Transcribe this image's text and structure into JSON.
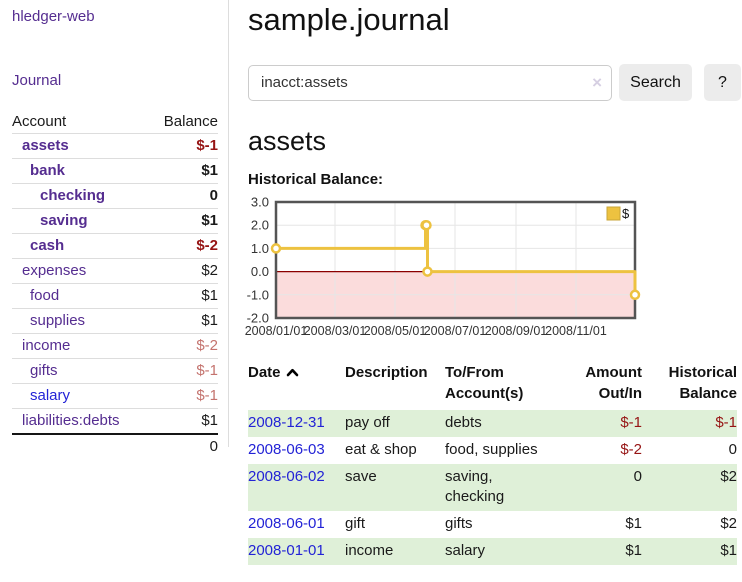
{
  "colors": {
    "link-purple": "#552d90",
    "link-blue": "#2323d6",
    "negative-strong": "#961414",
    "negative-soft": "#c4736e",
    "row-stripe": "#dff0d8",
    "chart-line": "#edc240"
  },
  "sidebar": {
    "app_title": "hledger-web",
    "journal_label": "Journal",
    "accounts_table": {
      "account_header": "Account",
      "balance_header": "Balance",
      "rows": [
        {
          "name": "assets",
          "balance": "$-1",
          "row_class": "d1 emph",
          "bal_class": "neg-strong"
        },
        {
          "name": "bank",
          "balance": "$1",
          "row_class": "d2 emph",
          "bal_class": ""
        },
        {
          "name": "checking",
          "balance": "0",
          "row_class": "d3 emph",
          "bal_class": ""
        },
        {
          "name": "saving",
          "balance": "$1",
          "row_class": "d3 emph",
          "bal_class": ""
        },
        {
          "name": "cash",
          "balance": "$-2",
          "row_class": "d2 emph",
          "bal_class": "neg-strong"
        },
        {
          "name": "expenses",
          "balance": "$2",
          "row_class": "d1",
          "bal_class": ""
        },
        {
          "name": "food",
          "balance": "$1",
          "row_class": "d2",
          "bal_class": ""
        },
        {
          "name": "supplies",
          "balance": "$1",
          "row_class": "d2",
          "bal_class": ""
        },
        {
          "name": "income",
          "balance": "$-2",
          "row_class": "d1",
          "bal_class": "neg-soft"
        },
        {
          "name": "gifts",
          "balance": "$-1",
          "row_class": "d2",
          "bal_class": "neg-soft"
        },
        {
          "name": "salary",
          "balance": "$-1",
          "row_class": "d2 unvisited",
          "bal_class": "neg-soft"
        },
        {
          "name": "liabilities:debts",
          "balance": "$1",
          "row_class": "d1",
          "bal_class": ""
        }
      ],
      "total": "0"
    }
  },
  "header": {
    "title": "sample.journal"
  },
  "search": {
    "value": "inacct:assets",
    "clear_icon": "×",
    "button_label": "Search",
    "help_label": "?"
  },
  "account_page": {
    "title": "assets",
    "chart_label": "Historical Balance:"
  },
  "chart_data": {
    "type": "line",
    "title": "Historical Balance:",
    "series": [
      {
        "name": "$",
        "color": "#edc240",
        "step": true,
        "points": [
          [
            "2008-01-01",
            1
          ],
          [
            "2008-06-01",
            2
          ],
          [
            "2008-06-02",
            2
          ],
          [
            "2008-06-03",
            0
          ],
          [
            "2008-12-31",
            -1
          ]
        ]
      }
    ],
    "x_ticks": [
      "2008/01/01",
      "2008/03/01",
      "2008/05/01",
      "2008/07/01",
      "2008/09/01",
      "2008/11/01"
    ],
    "y_ticks": [
      "3.0",
      "2.0",
      "1.0",
      "0.0",
      "-1.0",
      "-2.0"
    ],
    "ylim": [
      -2,
      3
    ],
    "xlim": [
      "2008-01-01",
      "2008-12-31"
    ],
    "grid": true,
    "legend": {
      "label": "$",
      "position": "top-right"
    },
    "negative_region_color": "#fbdcdc",
    "zero_line_color": "#8b0000",
    "border_color": "#545454"
  },
  "register": {
    "headers": {
      "date": "Date",
      "description": "Description",
      "accounts": "To/From\nAccount(s)",
      "amount": "Amount\nOut/In",
      "balance": "Historical\nBalance"
    },
    "rows": [
      {
        "date": "2008-12-31",
        "description": "pay off",
        "accounts": "debts",
        "amount": "$-1",
        "amount_class": "neg-strong",
        "balance": "$-1",
        "balance_class": "neg-strong",
        "row_class": "striped"
      },
      {
        "date": "2008-06-03",
        "description": "eat & shop",
        "accounts": "food, supplies",
        "amount": "$-2",
        "amount_class": "neg-strong",
        "balance": "0",
        "balance_class": "",
        "row_class": ""
      },
      {
        "date": "2008-06-02",
        "description": "save",
        "accounts": "saving, checking",
        "amount": "0",
        "amount_class": "",
        "balance": "$2",
        "balance_class": "",
        "row_class": "striped"
      },
      {
        "date": "2008-06-01",
        "description": "gift",
        "accounts": "gifts",
        "amount": "$1",
        "amount_class": "",
        "balance": "$2",
        "balance_class": "",
        "row_class": ""
      },
      {
        "date": "2008-01-01",
        "description": "income",
        "accounts": "salary",
        "amount": "$1",
        "amount_class": "",
        "balance": "$1",
        "balance_class": "",
        "row_class": "striped"
      }
    ]
  }
}
